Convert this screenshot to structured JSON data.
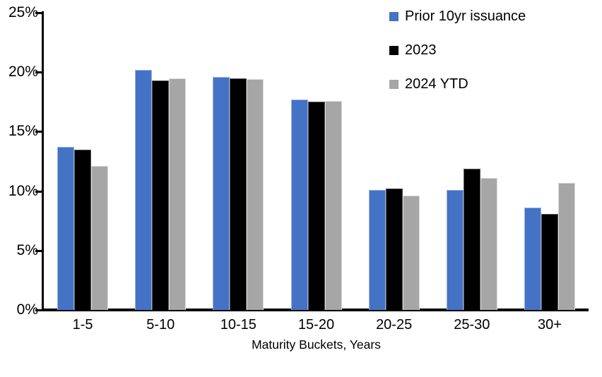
{
  "chart_data": {
    "type": "bar",
    "title": "",
    "xlabel": "Maturity Buckets, Years",
    "ylabel": "",
    "categories": [
      "1-5",
      "5-10",
      "10-15",
      "15-20",
      "20-25",
      "25-30",
      "30+"
    ],
    "series": [
      {
        "name": "Prior 10yr issuance",
        "color": "#4472C4",
        "border_color": "#9AB3E0",
        "values": [
          13.7,
          20.2,
          19.6,
          17.7,
          10.1,
          10.1,
          8.6
        ]
      },
      {
        "name": "2023",
        "color": "#000000",
        "border_color": "#595959",
        "values": [
          13.5,
          19.3,
          19.5,
          17.5,
          10.2,
          11.9,
          8.1
        ]
      },
      {
        "name": "2024 YTD",
        "color": "#A6A6A6",
        "border_color": "#DCDCDC",
        "values": [
          12.1,
          19.5,
          19.4,
          17.6,
          9.6,
          11.1,
          10.7
        ]
      }
    ],
    "ylim": [
      0,
      25
    ],
    "ytick_step": 5,
    "ytick_labels": [
      "0%",
      "5%",
      "10%",
      "15%",
      "20%",
      "25%"
    ],
    "grid": false,
    "legend_position": "top-right",
    "axis_color": "#000000",
    "background_color": "#FFFFFF"
  }
}
